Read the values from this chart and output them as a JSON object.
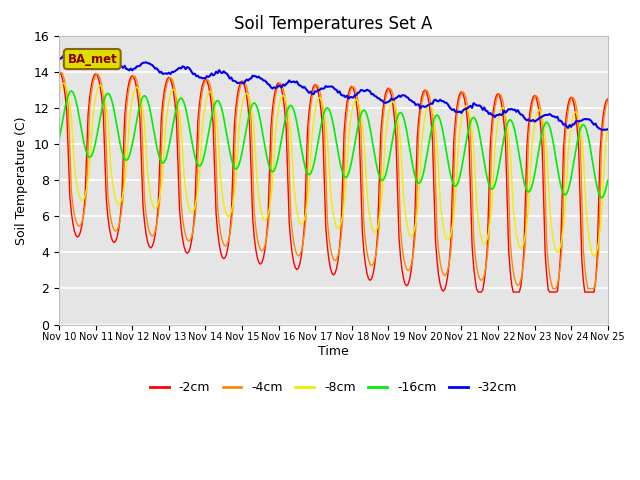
{
  "title": "Soil Temperatures Set A",
  "xlabel": "Time",
  "ylabel": "Soil Temperature (C)",
  "ylim": [
    0,
    16
  ],
  "xlim": [
    0,
    360
  ],
  "background_color": "#e5e5e5",
  "legend_labels": [
    "-2cm",
    "-4cm",
    "-8cm",
    "-16cm",
    "-32cm"
  ],
  "legend_colors": [
    "#ff0000",
    "#ff8800",
    "#eeee00",
    "#00ee00",
    "#0000ee"
  ],
  "ba_label": "BA_met",
  "xtick_labels": [
    "Nov 10",
    "Nov 11",
    "Nov 12",
    "Nov 13",
    "Nov 14",
    "Nov 15",
    "Nov 16",
    "Nov 17",
    "Nov 18",
    "Nov 19",
    "Nov 20",
    "Nov 21",
    "Nov 22",
    "Nov 23",
    "Nov 24",
    "Nov 25"
  ],
  "xtick_positions": [
    0,
    24,
    48,
    72,
    96,
    120,
    144,
    168,
    192,
    216,
    240,
    264,
    288,
    312,
    336,
    360
  ]
}
